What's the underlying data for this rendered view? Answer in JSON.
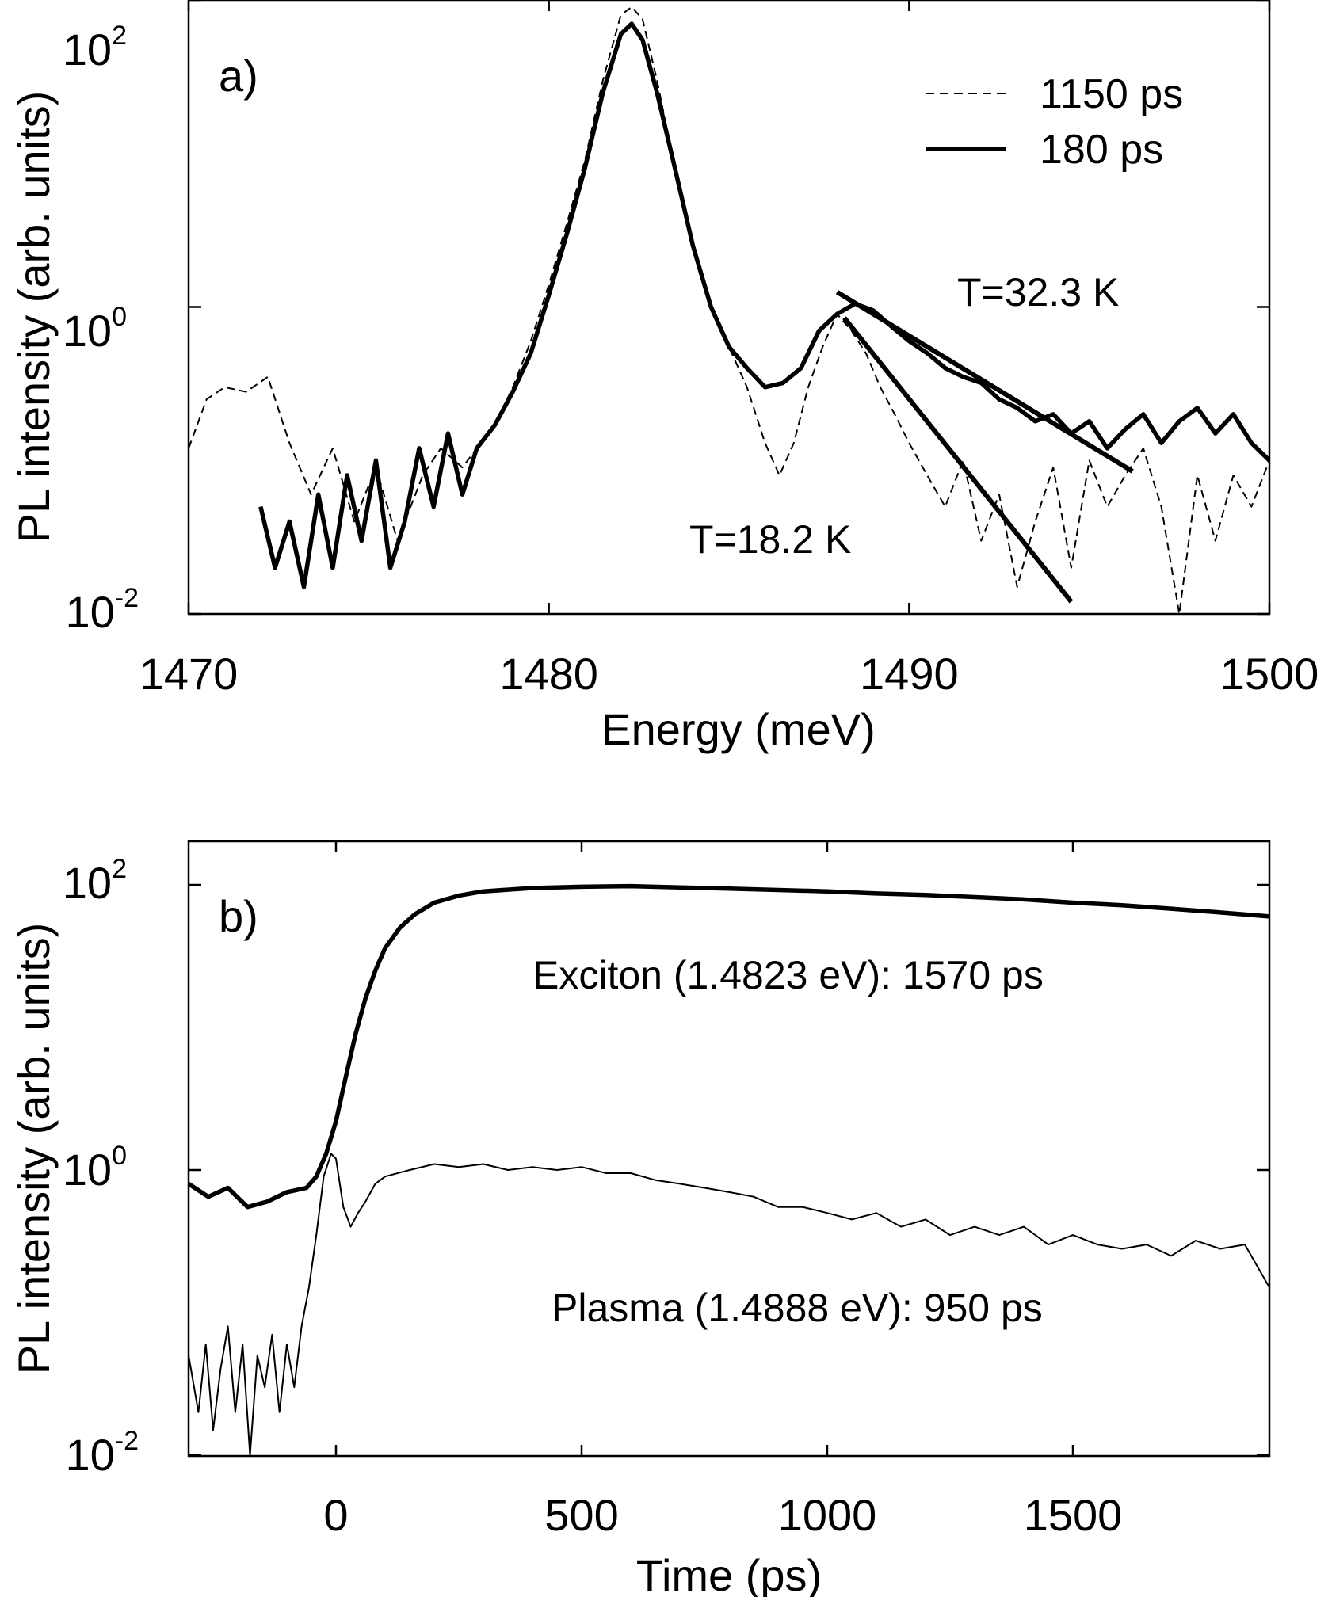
{
  "chart_data": [
    {
      "type": "line",
      "panel_label": "a)",
      "xlabel": "Energy (meV)",
      "ylabel": "PL intensity (arb. units)",
      "xlim": [
        1470,
        1500
      ],
      "ylim": [
        0.01,
        100
      ],
      "yscale": "log",
      "xticks": [
        1470,
        1480,
        1490,
        1500
      ],
      "yticks": [
        {
          "value": 100,
          "base": "10",
          "exp": "2"
        },
        {
          "value": 1,
          "base": "10",
          "exp": "0"
        },
        {
          "value": 0.01,
          "base": "10",
          "exp": "-2"
        }
      ],
      "legend": {
        "position": "top-right"
      },
      "series": [
        {
          "name": "1150 ps",
          "style": "dashed",
          "color": "#000000",
          "x": [
            1470,
            1470.5,
            1471,
            1471.6,
            1472.2,
            1472.8,
            1473.4,
            1474,
            1474.6,
            1475.2,
            1475.8,
            1476.5,
            1477,
            1477.6,
            1478,
            1478.5,
            1479,
            1479.5,
            1480,
            1480.5,
            1481,
            1481.5,
            1482,
            1482.3,
            1482.6,
            1483,
            1483.5,
            1484,
            1484.5,
            1485,
            1485.5,
            1486,
            1486.4,
            1486.8,
            1487.2,
            1487.6,
            1488,
            1488.4,
            1488.8,
            1489.2,
            1489.6,
            1490,
            1490.5,
            1491,
            1491.5,
            1492,
            1492.5,
            1493,
            1493.5,
            1494,
            1494.5,
            1495,
            1495.5,
            1496,
            1496.5,
            1497,
            1497.5,
            1498,
            1498.5,
            1499,
            1499.5,
            1500
          ],
          "y": [
            0.12,
            0.25,
            0.3,
            0.28,
            0.35,
            0.13,
            0.06,
            0.12,
            0.04,
            0.09,
            0.03,
            0.08,
            0.12,
            0.09,
            0.12,
            0.17,
            0.3,
            0.6,
            1.4,
            3.5,
            9,
            30,
            80,
            90,
            75,
            30,
            8,
            2.5,
            1.0,
            0.55,
            0.3,
            0.13,
            0.08,
            0.13,
            0.3,
            0.55,
            0.9,
            0.7,
            0.5,
            0.3,
            0.2,
            0.13,
            0.08,
            0.05,
            0.1,
            0.03,
            0.06,
            0.015,
            0.04,
            0.09,
            0.02,
            0.1,
            0.05,
            0.08,
            0.12,
            0.05,
            0.01,
            0.08,
            0.03,
            0.08,
            0.05,
            0.1
          ]
        },
        {
          "name": "180 ps",
          "style": "solid",
          "color": "#000000",
          "x": [
            1472,
            1472.4,
            1472.8,
            1473.2,
            1473.6,
            1474,
            1474.4,
            1474.8,
            1475.2,
            1475.6,
            1476,
            1476.4,
            1476.8,
            1477.2,
            1477.6,
            1478,
            1478.5,
            1479,
            1479.5,
            1480,
            1480.5,
            1481,
            1481.5,
            1482,
            1482.3,
            1482.6,
            1483,
            1483.5,
            1484,
            1484.5,
            1485,
            1485.5,
            1486,
            1486.5,
            1487,
            1487.5,
            1488,
            1488.5,
            1489,
            1489.5,
            1490,
            1490.5,
            1491,
            1491.5,
            1492,
            1492.5,
            1493,
            1493.5,
            1494,
            1494.5,
            1495,
            1495.5,
            1496,
            1496.5,
            1497,
            1497.5,
            1498,
            1498.5,
            1499,
            1499.5,
            1500
          ],
          "y": [
            0.05,
            0.02,
            0.04,
            0.015,
            0.06,
            0.02,
            0.08,
            0.03,
            0.1,
            0.02,
            0.04,
            0.12,
            0.05,
            0.15,
            0.06,
            0.12,
            0.17,
            0.28,
            0.5,
            1.2,
            3,
            8,
            25,
            60,
            70,
            55,
            25,
            8,
            2.5,
            1.0,
            0.55,
            0.4,
            0.3,
            0.32,
            0.4,
            0.7,
            0.9,
            1.05,
            0.95,
            0.75,
            0.6,
            0.5,
            0.4,
            0.35,
            0.32,
            0.25,
            0.22,
            0.18,
            0.2,
            0.15,
            0.18,
            0.12,
            0.16,
            0.2,
            0.13,
            0.18,
            0.22,
            0.15,
            0.2,
            0.13,
            0.1
          ]
        }
      ],
      "fits": [
        {
          "label": "T=32.3 K",
          "x": [
            1488,
            1496.2
          ],
          "y": [
            1.25,
            0.085
          ]
        },
        {
          "label": "T=18.2 K",
          "x": [
            1488.2,
            1494.5
          ],
          "y": [
            0.85,
            0.012
          ]
        }
      ]
    },
    {
      "type": "line",
      "panel_label": "b)",
      "xlabel": "Time (ps)",
      "ylabel": "PL intensity (arb. units)",
      "xlim": [
        -300,
        1900
      ],
      "ylim": [
        0.01,
        150
      ],
      "yscale": "log",
      "xticks": [
        0,
        500,
        1000,
        1500
      ],
      "yticks": [
        {
          "value": 100,
          "base": "10",
          "exp": "2"
        },
        {
          "value": 1,
          "base": "10",
          "exp": "0"
        },
        {
          "value": 0.01,
          "base": "10",
          "exp": "-2"
        }
      ],
      "series": [
        {
          "name": "Exciton (1.4823 eV): 1570 ps",
          "style": "solid-thick",
          "color": "#000000",
          "x": [
            -300,
            -260,
            -220,
            -180,
            -140,
            -100,
            -60,
            -40,
            -20,
            0,
            20,
            40,
            60,
            80,
            100,
            130,
            160,
            200,
            250,
            300,
            400,
            500,
            600,
            700,
            800,
            900,
            1000,
            1100,
            1200,
            1300,
            1400,
            1500,
            1600,
            1700,
            1800,
            1900
          ],
          "y": [
            0.8,
            0.65,
            0.75,
            0.55,
            0.6,
            0.7,
            0.75,
            0.9,
            1.3,
            2.2,
            4.5,
            9,
            16,
            25,
            36,
            50,
            62,
            75,
            84,
            90,
            95,
            97,
            98,
            96,
            94,
            92,
            90,
            87,
            85,
            82,
            79,
            75,
            72,
            68,
            64,
            60
          ]
        },
        {
          "name": "Plasma (1.4888 eV): 950 ps",
          "style": "solid-thin",
          "color": "#000000",
          "x": [
            -300,
            -280,
            -265,
            -250,
            -235,
            -220,
            -205,
            -190,
            -175,
            -160,
            -145,
            -130,
            -115,
            -100,
            -85,
            -70,
            -55,
            -40,
            -25,
            -10,
            0,
            15,
            30,
            45,
            60,
            80,
            100,
            150,
            200,
            250,
            300,
            350,
            400,
            450,
            500,
            550,
            600,
            650,
            700,
            750,
            800,
            850,
            900,
            950,
            1000,
            1050,
            1100,
            1150,
            1200,
            1250,
            1300,
            1350,
            1400,
            1450,
            1500,
            1550,
            1600,
            1650,
            1700,
            1750,
            1800,
            1850,
            1900
          ],
          "y": [
            0.05,
            0.02,
            0.06,
            0.015,
            0.04,
            0.08,
            0.02,
            0.06,
            0.01,
            0.05,
            0.03,
            0.07,
            0.02,
            0.06,
            0.03,
            0.08,
            0.15,
            0.35,
            0.9,
            1.3,
            1.2,
            0.55,
            0.4,
            0.5,
            0.6,
            0.8,
            0.9,
            1.0,
            1.1,
            1.05,
            1.1,
            1.0,
            1.05,
            1.0,
            1.05,
            0.95,
            0.95,
            0.85,
            0.8,
            0.75,
            0.7,
            0.65,
            0.55,
            0.55,
            0.5,
            0.45,
            0.5,
            0.4,
            0.45,
            0.35,
            0.4,
            0.35,
            0.4,
            0.3,
            0.35,
            0.3,
            0.28,
            0.3,
            0.25,
            0.32,
            0.28,
            0.3,
            0.15
          ]
        }
      ]
    }
  ]
}
